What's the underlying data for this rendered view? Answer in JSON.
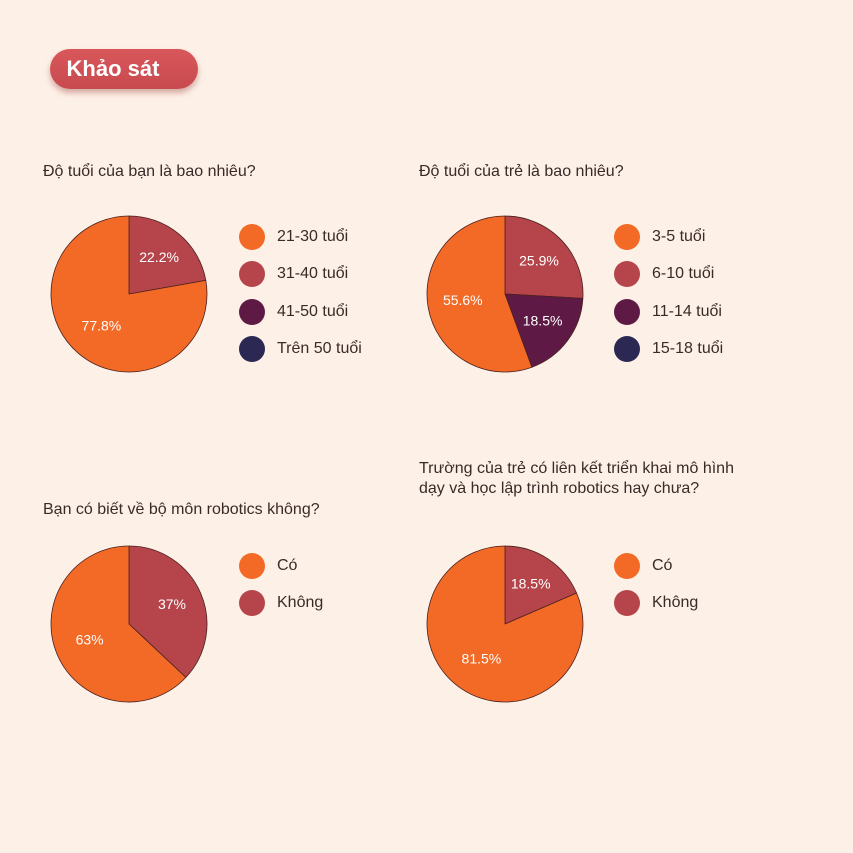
{
  "header": {
    "title": "Khảo sát"
  },
  "colors": {
    "orange": "#f26a25",
    "red": "#b5454a",
    "purple": "#5e1a45",
    "navy": "#2b2953"
  },
  "chart_data": [
    {
      "type": "pie",
      "title": "Độ tuổi của bạn là bao nhiêu?",
      "legend": [
        "21-30 tuổi",
        "31-40 tuổi",
        "41-50 tuổi",
        "Trên 50 tuổi"
      ],
      "legend_colors": [
        "#f26a25",
        "#b5454a",
        "#5e1a45",
        "#2b2953"
      ],
      "slices": [
        {
          "label": "21-30 tuổi",
          "value": 77.8,
          "display": "77.8%",
          "color": "#f26a25"
        },
        {
          "label": "31-40 tuổi",
          "value": 22.2,
          "display": "22.2%",
          "color": "#b5454a"
        }
      ]
    },
    {
      "type": "pie",
      "title": "Độ tuổi của trẻ là bao nhiêu?",
      "legend": [
        "3-5 tuổi",
        "6-10 tuổi",
        "11-14 tuổi",
        "15-18 tuổi"
      ],
      "legend_colors": [
        "#f26a25",
        "#b5454a",
        "#5e1a45",
        "#2b2953"
      ],
      "slices": [
        {
          "label": "3-5 tuổi",
          "value": 55.6,
          "display": "55.6%",
          "color": "#f26a25"
        },
        {
          "label": "6-10 tuổi",
          "value": 25.9,
          "display": "25.9%",
          "color": "#b5454a"
        },
        {
          "label": "11-14 tuổi",
          "value": 18.5,
          "display": "18.5%",
          "color": "#5e1a45"
        }
      ]
    },
    {
      "type": "pie",
      "title": "Bạn có biết về bộ môn robotics không?",
      "legend": [
        "Có",
        "Không"
      ],
      "legend_colors": [
        "#f26a25",
        "#b5454a"
      ],
      "slices": [
        {
          "label": "Có",
          "value": 63,
          "display": "63%",
          "color": "#f26a25"
        },
        {
          "label": "Không",
          "value": 37,
          "display": "37%",
          "color": "#b5454a"
        }
      ]
    },
    {
      "type": "pie",
      "title": "Trường của trẻ có liên kết triển khai mô hình dạy và học lập trình robotics hay chưa?",
      "legend": [
        "Có",
        "Không"
      ],
      "legend_colors": [
        "#f26a25",
        "#b5454a"
      ],
      "slices": [
        {
          "label": "Có",
          "value": 81.5,
          "display": "81.5%",
          "color": "#f26a25"
        },
        {
          "label": "Không",
          "value": 18.5,
          "display": "18.5%",
          "color": "#b5454a"
        }
      ]
    }
  ]
}
